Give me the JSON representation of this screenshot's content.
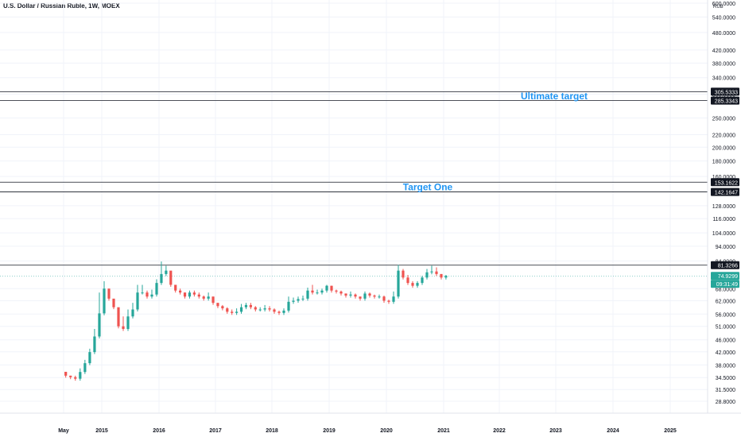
{
  "ticker": {
    "title": "U.S. Dollar / Russian Ruble, 1W, MOEX",
    "currency": "RUB"
  },
  "colors": {
    "up": "#26a69a",
    "down": "#ef5350",
    "level_line": "#131722",
    "annotation": "#2196f3",
    "price_badge": "#26a69a",
    "tag_bg": "#131722"
  },
  "chart_data": {
    "type": "candlestick",
    "x": [
      "2014-05",
      "2014-06",
      "2014-07",
      "2014-08",
      "2014-09",
      "2014-10",
      "2014-11",
      "2014-12",
      "2015-01",
      "2015-02",
      "2015-03",
      "2015-04",
      "2015-05",
      "2015-06",
      "2015-07",
      "2015-08",
      "2015-09",
      "2015-10",
      "2015-11",
      "2015-12",
      "2016-01",
      "2016-02",
      "2016-03",
      "2016-04",
      "2016-05",
      "2016-06",
      "2016-07",
      "2016-08",
      "2016-09",
      "2016-10",
      "2016-11",
      "2016-12",
      "2017-01",
      "2017-02",
      "2017-03",
      "2017-04",
      "2017-05",
      "2017-06",
      "2017-07",
      "2017-08",
      "2017-09",
      "2017-10",
      "2017-11",
      "2017-12",
      "2018-01",
      "2018-02",
      "2018-03",
      "2018-04",
      "2018-05",
      "2018-06",
      "2018-07",
      "2018-08",
      "2018-09",
      "2018-10",
      "2018-11",
      "2018-12",
      "2019-01",
      "2019-02",
      "2019-03",
      "2019-04",
      "2019-05",
      "2019-06",
      "2019-07",
      "2019-08",
      "2019-09",
      "2019-10",
      "2019-11",
      "2019-12",
      "2020-01",
      "2020-02",
      "2020-03",
      "2020-04",
      "2020-05",
      "2020-06",
      "2020-07",
      "2020-08",
      "2020-09",
      "2020-10",
      "2020-11",
      "2020-12",
      "2021-01"
    ],
    "close": [
      35.0,
      34.6,
      34.2,
      36.0,
      38.5,
      41.9,
      47.2,
      56.3,
      68.0,
      63.0,
      59.0,
      51.0,
      50.0,
      55.0,
      58.0,
      66.0,
      66.0,
      64.0,
      65.0,
      71.0,
      76.0,
      78.0,
      70.0,
      67.0,
      66.0,
      64.0,
      66.0,
      65.0,
      64.0,
      63.0,
      64.0,
      61.0,
      59.5,
      58.5,
      57.0,
      56.5,
      57.0,
      59.0,
      60.0,
      59.0,
      58.0,
      58.0,
      58.5,
      58.0,
      57.0,
      56.5,
      57.5,
      61.5,
      62.0,
      62.8,
      63.0,
      67.0,
      66.0,
      66.0,
      67.0,
      69.5,
      67.0,
      66.5,
      65.5,
      64.5,
      65.0,
      64.0,
      63.0,
      65.5,
      64.5,
      64.0,
      64.0,
      62.0,
      61.5,
      64.0,
      78.0,
      74.0,
      71.0,
      69.5,
      71.0,
      74.0,
      77.0,
      77.5,
      76.0,
      74.0,
      74.93
    ],
    "high": [
      36.0,
      35.0,
      35.0,
      37.0,
      39.5,
      43.0,
      50.0,
      66.0,
      72.0,
      68.0,
      62.0,
      53.0,
      55.0,
      58.0,
      61.0,
      70.0,
      70.0,
      67.0,
      67.5,
      73.0,
      83.6,
      81.0,
      75.0,
      69.0,
      68.0,
      66.0,
      67.0,
      67.0,
      66.0,
      64.5,
      66.0,
      64.0,
      61.0,
      60.0,
      59.0,
      58.0,
      58.5,
      60.5,
      61.0,
      61.0,
      59.5,
      59.0,
      60.0,
      59.5,
      58.5,
      57.5,
      58.5,
      64.0,
      63.5,
      64.0,
      64.5,
      68.5,
      70.0,
      67.5,
      68.0,
      70.0,
      69.5,
      67.5,
      67.0,
      65.5,
      66.5,
      65.5,
      64.0,
      66.5,
      66.0,
      65.0,
      65.0,
      64.5,
      62.5,
      66.5,
      81.5,
      79.0,
      75.5,
      72.0,
      72.0,
      75.0,
      79.0,
      81.0,
      80.0,
      76.0,
      75.5
    ],
    "ylim": [
      28.8,
      600
    ],
    "yscale": "log",
    "y_ticks": [
      "600.0000",
      "540.0000",
      "480.0000",
      "420.0000",
      "380.0000",
      "340.0000",
      "300.0000",
      "250.0000",
      "220.0000",
      "200.0000",
      "180.0000",
      "160.0000",
      "128.0000",
      "116.0000",
      "104.0000",
      "94.0000",
      "84.0000",
      "68.0000",
      "62.0000",
      "56.0000",
      "51.0000",
      "46.0000",
      "42.0000",
      "38.0000",
      "34.5000",
      "31.5000",
      "28.8000"
    ],
    "x_ticks": [
      "May",
      "2015",
      "2016",
      "2017",
      "2018",
      "2019",
      "2020",
      "2021",
      "2022",
      "2023",
      "2024",
      "2025"
    ],
    "levels": [
      {
        "value": 305.5333,
        "label": "305.5333"
      },
      {
        "value": 285.3343,
        "label": "285.3343"
      },
      {
        "value": 153.1622,
        "label": "153.1622"
      },
      {
        "value": 142.1647,
        "label": "142.1647"
      },
      {
        "value": 81.3266,
        "label": "81.3266"
      }
    ],
    "annotations": [
      {
        "text": "Ultimate target",
        "value": 295
      },
      {
        "text": "Target One",
        "value": 147.5
      }
    ],
    "last_price": "74.9299",
    "countdown": "09:31:49"
  }
}
